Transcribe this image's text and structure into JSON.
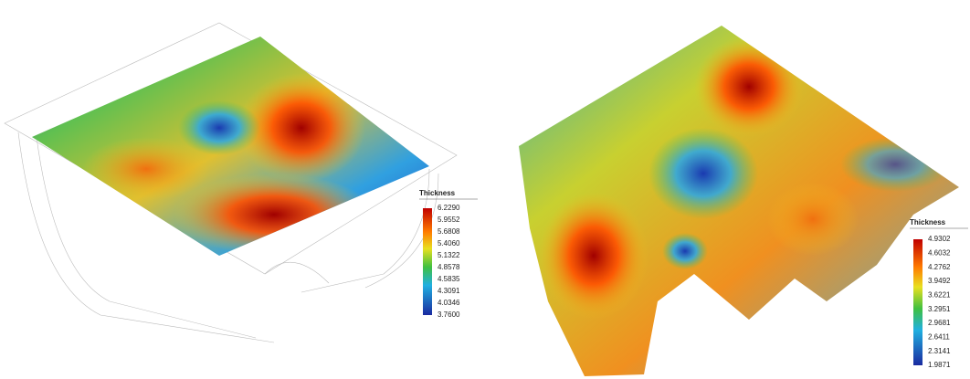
{
  "panels": [
    {
      "legend_title": "Thickness",
      "legend_labels": [
        "6.2290",
        "5.9552",
        "5.6808",
        "5.4060",
        "5.1322",
        "4.8578",
        "4.5835",
        "4.3091",
        "4.0346",
        "3.7600"
      ]
    },
    {
      "legend_title": "Thickness",
      "legend_labels": [
        "4.9302",
        "4.6032",
        "4.2762",
        "3.9492",
        "3.6221",
        "3.2951",
        "2.9681",
        "2.6411",
        "2.3141",
        "1.9871"
      ]
    }
  ]
}
